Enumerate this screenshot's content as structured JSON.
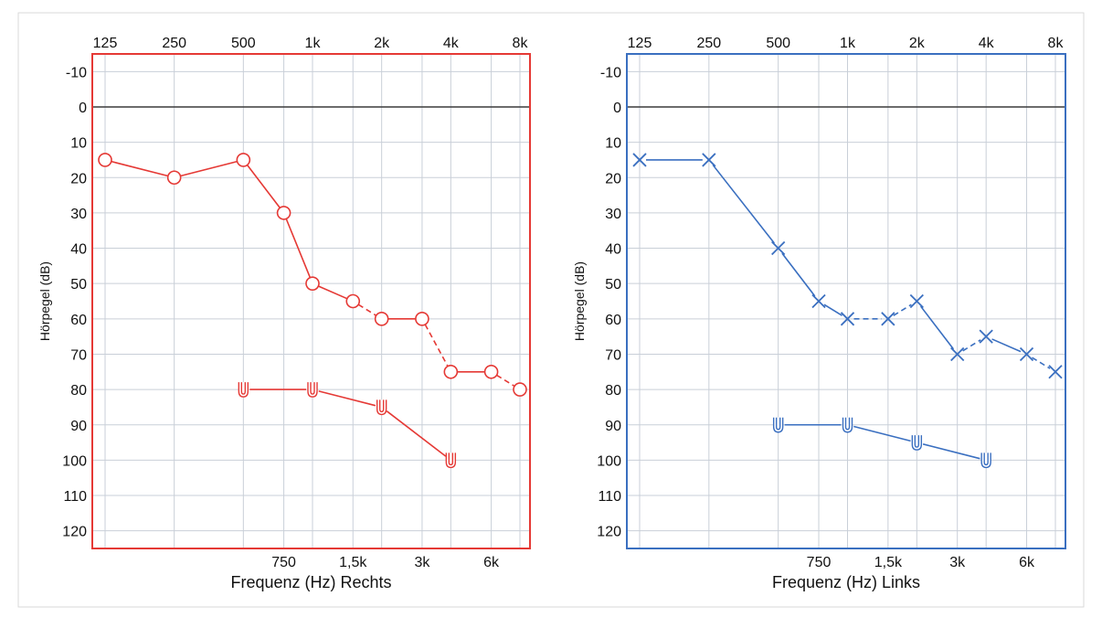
{
  "chart_data": [
    {
      "type": "line",
      "side": "right",
      "xlabel": "Frequenz (Hz) Rechts",
      "ylabel": "Hörpegel (dB)",
      "color": "#e53935",
      "top_ticks": [
        {
          "f": 125,
          "label": "125"
        },
        {
          "f": 250,
          "label": "250"
        },
        {
          "f": 500,
          "label": "500"
        },
        {
          "f": 1000,
          "label": "1k"
        },
        {
          "f": 2000,
          "label": "2k"
        },
        {
          "f": 4000,
          "label": "4k"
        },
        {
          "f": 8000,
          "label": "8k"
        }
      ],
      "bottom_ticks": [
        {
          "f": 750,
          "label": "750"
        },
        {
          "f": 1500,
          "label": "1,5k"
        },
        {
          "f": 3000,
          "label": "3k"
        },
        {
          "f": 6000,
          "label": "6k"
        }
      ],
      "y_ticks": [
        -10,
        0,
        10,
        20,
        30,
        40,
        50,
        60,
        70,
        80,
        90,
        100,
        110,
        120
      ],
      "ylim": [
        -15,
        125
      ],
      "xlim": [
        125,
        8000
      ],
      "y_inverted": true,
      "series": [
        {
          "marker": "circle",
          "points": [
            [
              125,
              15
            ],
            [
              250,
              20
            ],
            [
              500,
              15
            ],
            [
              750,
              30
            ],
            [
              1000,
              50
            ],
            [
              1500,
              55
            ],
            [
              2000,
              60
            ],
            [
              3000,
              60
            ],
            [
              4000,
              75
            ],
            [
              6000,
              75
            ],
            [
              8000,
              80
            ]
          ],
          "dashed_segments": [
            5,
            7,
            9
          ]
        },
        {
          "marker": "u",
          "points": [
            [
              500,
              80
            ],
            [
              1000,
              80
            ],
            [
              2000,
              85
            ],
            [
              4000,
              100
            ]
          ],
          "dashed_segments": []
        }
      ]
    },
    {
      "type": "line",
      "side": "left",
      "xlabel": "Frequenz (Hz) Links",
      "ylabel": "Hörpegel (dB)",
      "color": "#3a6fc0",
      "top_ticks": [
        {
          "f": 125,
          "label": "125"
        },
        {
          "f": 250,
          "label": "250"
        },
        {
          "f": 500,
          "label": "500"
        },
        {
          "f": 1000,
          "label": "1k"
        },
        {
          "f": 2000,
          "label": "2k"
        },
        {
          "f": 4000,
          "label": "4k"
        },
        {
          "f": 8000,
          "label": "8k"
        }
      ],
      "bottom_ticks": [
        {
          "f": 750,
          "label": "750"
        },
        {
          "f": 1500,
          "label": "1,5k"
        },
        {
          "f": 3000,
          "label": "3k"
        },
        {
          "f": 6000,
          "label": "6k"
        }
      ],
      "y_ticks": [
        -10,
        0,
        10,
        20,
        30,
        40,
        50,
        60,
        70,
        80,
        90,
        100,
        110,
        120
      ],
      "ylim": [
        -15,
        125
      ],
      "xlim": [
        125,
        8000
      ],
      "y_inverted": true,
      "series": [
        {
          "marker": "x",
          "points": [
            [
              125,
              15
            ],
            [
              250,
              15
            ],
            [
              500,
              40
            ],
            [
              750,
              55
            ],
            [
              1000,
              60
            ],
            [
              1500,
              60
            ],
            [
              2000,
              55
            ],
            [
              3000,
              70
            ],
            [
              4000,
              65
            ],
            [
              6000,
              70
            ],
            [
              8000,
              75
            ]
          ],
          "dashed_segments": [
            4,
            5,
            7,
            9
          ]
        },
        {
          "marker": "u",
          "points": [
            [
              500,
              90
            ],
            [
              1000,
              90
            ],
            [
              2000,
              95
            ],
            [
              4000,
              100
            ]
          ],
          "dashed_segments": []
        }
      ]
    }
  ]
}
